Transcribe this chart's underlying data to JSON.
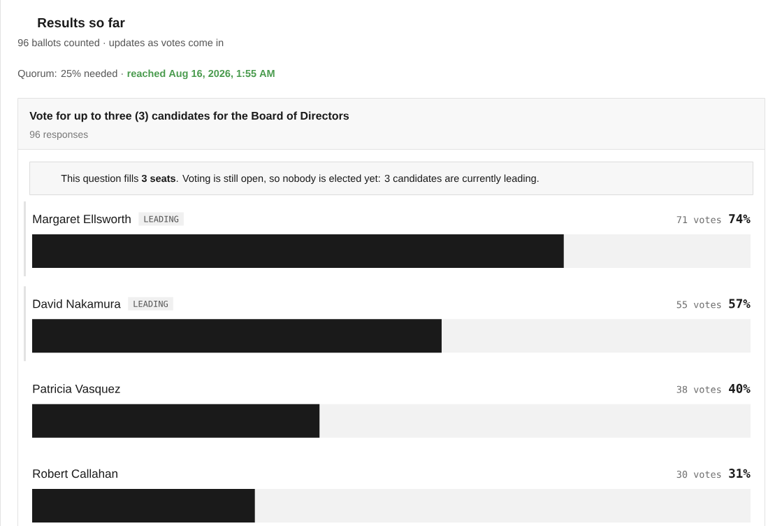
{
  "chart_data": {
    "type": "bar",
    "orientation": "horizontal",
    "title": "Results so far",
    "subtitle": "96 ballots counted · updates as votes come in",
    "categories": [
      "Margaret Ellsworth",
      "David Nakamura",
      "Patricia Vasquez",
      "Robert Callahan"
    ],
    "values": [
      74,
      57,
      40,
      31
    ],
    "color": "#1a1a1a",
    "xlim": [
      0,
      100
    ],
    "value_labels": [
      "74%",
      "57%",
      "40%",
      "31%"
    ],
    "tick_labels": "y",
    "annotations": [
      "Quorum: 25% needed ·",
      "reached Aug 16, 2026, 1:55 AM",
      "Vote for up to three (3) candidates for the Board of Directors",
      "96 responses",
      "This question fills **3 seats**. Voting is still open, so nobody is elected yet: 3 candidates are currently leading.",
      "LEADING",
      "LEADING",
      "71 votes",
      "55 votes",
      "38 votes",
      "30 votes"
    ]
  }
}
